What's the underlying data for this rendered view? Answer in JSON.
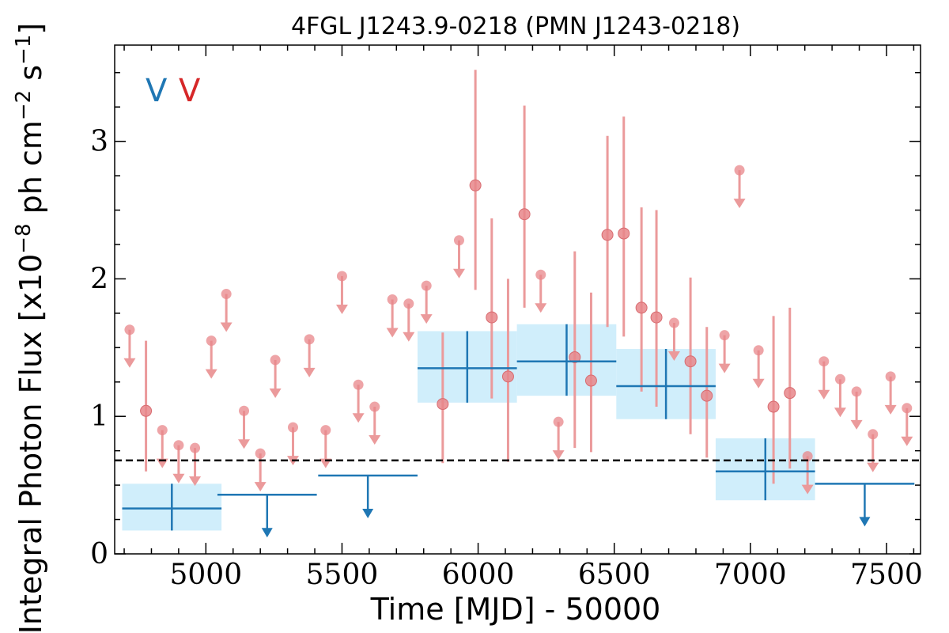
{
  "chart_data": {
    "type": "scatter",
    "title": "4FGL J1243.9-0218 (PMN J1243-0218)",
    "xlabel": "Time [MJD] - 50000",
    "ylabel_prefix": "Integral Photon Flux [x10",
    "ylabel_exp1": "−8",
    "ylabel_mid": " ph cm",
    "ylabel_exp2": "−2",
    "ylabel_mid2": " s",
    "ylabel_exp3": "−1",
    "ylabel_suffix": "]",
    "xlim": [
      4665,
      7625
    ],
    "ylim": [
      0,
      3.7
    ],
    "xticks": [
      5000,
      5500,
      6000,
      6500,
      7000,
      7500
    ],
    "yticks": [
      0,
      1,
      2,
      3
    ],
    "mean_flux": 0.68,
    "legend": [
      {
        "label": "V",
        "color": "#1f77b4"
      },
      {
        "label": "V",
        "color": "#d62728"
      }
    ],
    "colors": {
      "coarse": "#1f77b4",
      "coarse_band": "#d0eefb",
      "fine": "#eb9a9b",
      "fine_dot": "#e8868a",
      "fine_dot_edge": "#d86b70",
      "mean_line": "#000000"
    },
    "series": [
      {
        "name": "",
        "bin_size_days": 365,
        "detections": [
          {
            "x": 4875,
            "y": 0.33,
            "ylo": 0.17,
            "yhi": 0.51
          },
          {
            "x": 5960,
            "y": 1.35,
            "ylo": 1.1,
            "yhi": 1.62
          },
          {
            "x": 6325,
            "y": 1.4,
            "ylo": 1.15,
            "yhi": 1.67
          },
          {
            "x": 6690,
            "y": 1.22,
            "ylo": 0.98,
            "yhi": 1.49
          },
          {
            "x": 7055,
            "y": 0.6,
            "ylo": 0.39,
            "yhi": 0.84
          }
        ],
        "upper_limits": [
          {
            "x": 5225,
            "y": 0.43
          },
          {
            "x": 5595,
            "y": 0.57
          },
          {
            "x": 7420,
            "y": 0.51
          }
        ]
      },
      {
        "name": "",
        "bin_size_days": 60,
        "detections": [
          {
            "x": 4780,
            "y": 1.04,
            "ylo": 0.6,
            "yhi": 1.55
          },
          {
            "x": 5870,
            "y": 1.09,
            "ylo": 0.66,
            "yhi": 1.61
          },
          {
            "x": 5990,
            "y": 2.68,
            "ylo": 1.92,
            "yhi": 3.52
          },
          {
            "x": 6050,
            "y": 1.72,
            "ylo": 1.13,
            "yhi": 2.44
          },
          {
            "x": 6110,
            "y": 1.29,
            "ylo": 0.67,
            "yhi": 2.0
          },
          {
            "x": 6170,
            "y": 2.47,
            "ylo": 1.79,
            "yhi": 3.26
          },
          {
            "x": 6355,
            "y": 1.43,
            "ylo": 0.77,
            "yhi": 2.2
          },
          {
            "x": 6415,
            "y": 1.26,
            "ylo": 0.74,
            "yhi": 1.9
          },
          {
            "x": 6475,
            "y": 2.32,
            "ylo": 1.65,
            "yhi": 3.04
          },
          {
            "x": 6535,
            "y": 2.33,
            "ylo": 1.58,
            "yhi": 3.18
          },
          {
            "x": 6600,
            "y": 1.79,
            "ylo": 1.18,
            "yhi": 2.52
          },
          {
            "x": 6655,
            "y": 1.72,
            "ylo": 1.07,
            "yhi": 2.5
          },
          {
            "x": 6780,
            "y": 1.4,
            "ylo": 0.87,
            "yhi": 2.01
          },
          {
            "x": 6840,
            "y": 1.15,
            "ylo": 0.7,
            "yhi": 1.65
          },
          {
            "x": 7085,
            "y": 1.07,
            "ylo": 0.51,
            "yhi": 1.73
          },
          {
            "x": 7145,
            "y": 1.17,
            "ylo": 0.62,
            "yhi": 1.79
          }
        ],
        "upper_limits": [
          {
            "x": 4720,
            "y": 1.63
          },
          {
            "x": 4840,
            "y": 0.9
          },
          {
            "x": 4900,
            "y": 0.79
          },
          {
            "x": 4960,
            "y": 0.77
          },
          {
            "x": 5020,
            "y": 1.55
          },
          {
            "x": 5075,
            "y": 1.89
          },
          {
            "x": 5140,
            "y": 1.04
          },
          {
            "x": 5200,
            "y": 0.73
          },
          {
            "x": 5255,
            "y": 1.41
          },
          {
            "x": 5320,
            "y": 0.92
          },
          {
            "x": 5380,
            "y": 1.56
          },
          {
            "x": 5440,
            "y": 0.9
          },
          {
            "x": 5500,
            "y": 2.02
          },
          {
            "x": 5560,
            "y": 1.23
          },
          {
            "x": 5620,
            "y": 1.07
          },
          {
            "x": 5685,
            "y": 1.85
          },
          {
            "x": 5745,
            "y": 1.82
          },
          {
            "x": 5810,
            "y": 1.95
          },
          {
            "x": 5930,
            "y": 2.28
          },
          {
            "x": 6230,
            "y": 2.03
          },
          {
            "x": 6295,
            "y": 0.96
          },
          {
            "x": 6720,
            "y": 1.68
          },
          {
            "x": 6905,
            "y": 1.59
          },
          {
            "x": 6960,
            "y": 2.79
          },
          {
            "x": 7030,
            "y": 1.48
          },
          {
            "x": 7210,
            "y": 0.71
          },
          {
            "x": 7270,
            "y": 1.4
          },
          {
            "x": 7330,
            "y": 1.27
          },
          {
            "x": 7390,
            "y": 1.18
          },
          {
            "x": 7450,
            "y": 0.87
          },
          {
            "x": 7515,
            "y": 1.29
          },
          {
            "x": 7575,
            "y": 1.06
          }
        ]
      }
    ]
  }
}
